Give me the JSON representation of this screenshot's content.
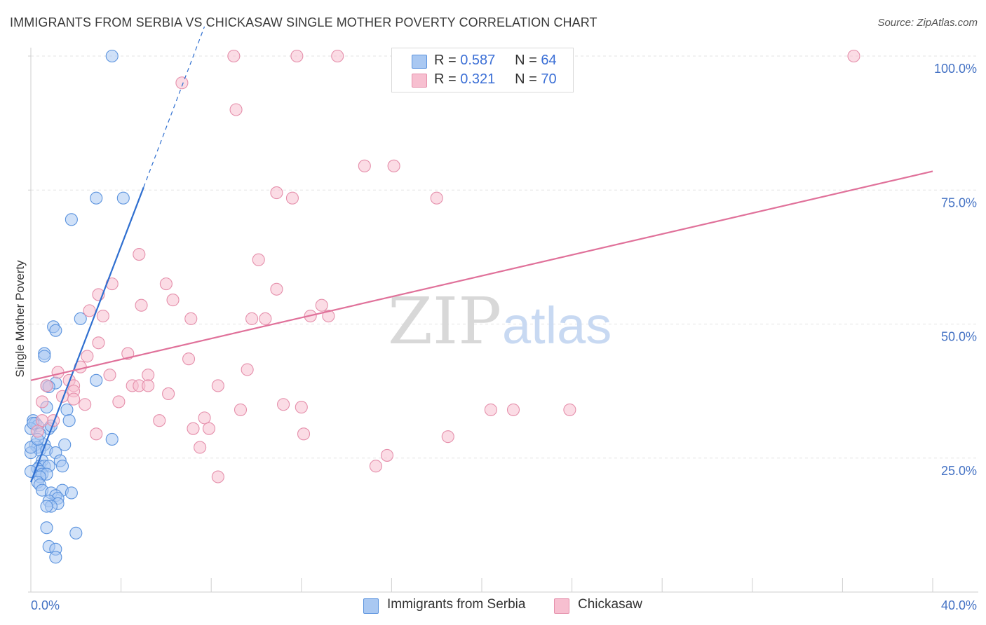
{
  "header": {
    "title": "IMMIGRANTS FROM SERBIA VS CHICKASAW SINGLE MOTHER POVERTY CORRELATION CHART",
    "source": "Source: ZipAtlas.com"
  },
  "watermark": {
    "zip": "ZIP",
    "atlas": "atlas"
  },
  "legend": {
    "r_label": "R =",
    "n_label": "N =",
    "series": [
      {
        "r": "0.587",
        "n": "64"
      },
      {
        "r": "0.321",
        "n": "70"
      }
    ]
  },
  "colors": {
    "serbia_fill": "#a9c8f2",
    "serbia_stroke": "#5b93de",
    "serbia_line": "#2f6fd0",
    "chickasaw_fill": "#f7bfd0",
    "chickasaw_stroke": "#e58fab",
    "chickasaw_line": "#e0719a"
  },
  "chart_data": {
    "type": "scatter",
    "title": "IMMIGRANTS FROM SERBIA VS CHICKASAW SINGLE MOTHER POVERTY CORRELATION CHART",
    "xlabel": "",
    "ylabel": "Single Mother Poverty",
    "xlim": [
      0,
      40
    ],
    "ylim": [
      0,
      100
    ],
    "x_tick_labels": [
      "0.0%",
      "40.0%"
    ],
    "y_tick_labels": [
      "25.0%",
      "50.0%",
      "75.0%",
      "100.0%"
    ],
    "y_tick_values": [
      25,
      50,
      75,
      100
    ],
    "grid": true,
    "legend_position": "top-center",
    "series": [
      {
        "name": "Immigrants from Serbia",
        "r": 0.587,
        "n": 64,
        "trend": {
          "x0": 0.0,
          "y0": 20.5,
          "x1": 5.0,
          "y1": 75.5,
          "dash_to_x": 7.7,
          "dash_to_y": 105.5
        },
        "points": [
          [
            3.6,
            102
          ],
          [
            2.9,
            73.5
          ],
          [
            4.1,
            73.5
          ],
          [
            1.8,
            69.5
          ],
          [
            2.2,
            51
          ],
          [
            1.0,
            49.5
          ],
          [
            1.1,
            48.8
          ],
          [
            0.6,
            44.5
          ],
          [
            0.6,
            44
          ],
          [
            2.9,
            39.5
          ],
          [
            1.1,
            39
          ],
          [
            0.7,
            38.5
          ],
          [
            0.8,
            38.3
          ],
          [
            0.7,
            34.5
          ],
          [
            1.6,
            34
          ],
          [
            0.1,
            32
          ],
          [
            0.2,
            31.5
          ],
          [
            1.7,
            32
          ],
          [
            0.3,
            31
          ],
          [
            0.8,
            30.5
          ],
          [
            0.0,
            30.5
          ],
          [
            0.4,
            29.5
          ],
          [
            0.2,
            27.5
          ],
          [
            0.6,
            27.5
          ],
          [
            1.5,
            27.5
          ],
          [
            3.6,
            28.5
          ],
          [
            0.3,
            27
          ],
          [
            0.4,
            26.5
          ],
          [
            0.7,
            26.5
          ],
          [
            1.1,
            26
          ],
          [
            0.0,
            26
          ],
          [
            0.5,
            24.5
          ],
          [
            1.3,
            24.5
          ],
          [
            0.4,
            23.5
          ],
          [
            0.6,
            23.5
          ],
          [
            0.8,
            23.5
          ],
          [
            1.4,
            23.5
          ],
          [
            0.3,
            23
          ],
          [
            0.4,
            22.5
          ],
          [
            0.0,
            22.5
          ],
          [
            0.5,
            22
          ],
          [
            0.7,
            22
          ],
          [
            0.4,
            21.5
          ],
          [
            0.3,
            20.5
          ],
          [
            0.4,
            20
          ],
          [
            1.4,
            19
          ],
          [
            0.5,
            19
          ],
          [
            1.8,
            18.5
          ],
          [
            0.9,
            18.5
          ],
          [
            1.1,
            18
          ],
          [
            1.2,
            17.5
          ],
          [
            0.8,
            17
          ],
          [
            1.2,
            16.5
          ],
          [
            0.9,
            16
          ],
          [
            0.7,
            16
          ],
          [
            0.7,
            12
          ],
          [
            2.0,
            11
          ],
          [
            0.8,
            8.5
          ],
          [
            1.1,
            8
          ],
          [
            1.1,
            6.5
          ],
          [
            0.1,
            31.5
          ],
          [
            0.0,
            27
          ],
          [
            0.9,
            31
          ],
          [
            0.3,
            28.5
          ]
        ]
      },
      {
        "name": "Chickasaw",
        "r": 0.321,
        "n": 70,
        "trend": {
          "x0": 0.0,
          "y0": 39.5,
          "x1": 40.0,
          "y1": 78.5
        },
        "points": [
          [
            9.0,
            102
          ],
          [
            11.8,
            102
          ],
          [
            13.6,
            102
          ],
          [
            36.5,
            102
          ],
          [
            6.7,
            95
          ],
          [
            9.1,
            90
          ],
          [
            14.8,
            79.5
          ],
          [
            16.1,
            79.5
          ],
          [
            10.9,
            74.5
          ],
          [
            11.6,
            73.5
          ],
          [
            18.0,
            73.5
          ],
          [
            4.8,
            63
          ],
          [
            10.1,
            62
          ],
          [
            3.6,
            57.5
          ],
          [
            6.0,
            57.5
          ],
          [
            10.9,
            56.5
          ],
          [
            3.0,
            55.5
          ],
          [
            6.3,
            54.5
          ],
          [
            4.9,
            53.5
          ],
          [
            12.9,
            53.5
          ],
          [
            2.6,
            52.5
          ],
          [
            3.2,
            51.5
          ],
          [
            7.1,
            51
          ],
          [
            9.8,
            51
          ],
          [
            10.4,
            51
          ],
          [
            12.4,
            51.5
          ],
          [
            13.2,
            51.5
          ],
          [
            3.0,
            46.5
          ],
          [
            4.3,
            44.5
          ],
          [
            2.5,
            44
          ],
          [
            7.0,
            43.5
          ],
          [
            2.2,
            42
          ],
          [
            1.2,
            41
          ],
          [
            9.6,
            41.5
          ],
          [
            3.5,
            40.5
          ],
          [
            5.2,
            40.5
          ],
          [
            1.7,
            39.5
          ],
          [
            1.9,
            38.5
          ],
          [
            0.7,
            38.5
          ],
          [
            4.5,
            38.5
          ],
          [
            4.8,
            38.5
          ],
          [
            5.2,
            38.5
          ],
          [
            8.3,
            38.5
          ],
          [
            1.9,
            37.5
          ],
          [
            1.4,
            36.5
          ],
          [
            6.1,
            37
          ],
          [
            1.9,
            36
          ],
          [
            3.9,
            35.5
          ],
          [
            0.5,
            35.5
          ],
          [
            2.4,
            35
          ],
          [
            11.2,
            35
          ],
          [
            12.0,
            34.5
          ],
          [
            9.3,
            34
          ],
          [
            20.4,
            34
          ],
          [
            21.4,
            34
          ],
          [
            23.9,
            34
          ],
          [
            7.7,
            32.5
          ],
          [
            5.7,
            32
          ],
          [
            1.0,
            32
          ],
          [
            0.5,
            32
          ],
          [
            7.2,
            30.5
          ],
          [
            7.9,
            30.5
          ],
          [
            0.3,
            30
          ],
          [
            2.9,
            29.5
          ],
          [
            12.1,
            29.5
          ],
          [
            18.5,
            29
          ],
          [
            7.5,
            27
          ],
          [
            15.8,
            25.5
          ],
          [
            15.3,
            23.5
          ],
          [
            8.3,
            21.5
          ]
        ]
      }
    ]
  },
  "bottom_legend": {
    "items": [
      {
        "label": "Immigrants from Serbia"
      },
      {
        "label": "Chickasaw"
      }
    ]
  }
}
